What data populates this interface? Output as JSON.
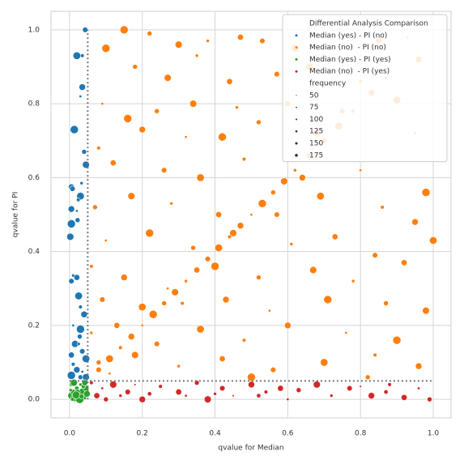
{
  "chart_data": {
    "type": "scatter",
    "xlabel": "qvalue for Median",
    "ylabel": "qvalue for PI",
    "xlim": [
      -0.051,
      1.049
    ],
    "ylim": [
      -0.05,
      1.05
    ],
    "xticks": [
      {
        "value": 0,
        "label": "0.0"
      },
      0.2,
      0.4,
      0.6,
      0.8,
      {
        "value": 1,
        "label": "1.0"
      }
    ],
    "yticks": [
      {
        "value": 0,
        "label": "0.0"
      },
      0.2,
      0.4,
      0.6,
      0.8,
      {
        "value": 1,
        "label": "1.0"
      }
    ],
    "grid": true,
    "threshold": 0.05,
    "legend": {
      "title": "Differential Analysis Comparison",
      "position": "upper right"
    },
    "size_legend": {
      "title": "frequency",
      "values": [
        50,
        75,
        100,
        125,
        150,
        175
      ]
    },
    "series": [
      {
        "name": "Median (yes) - PI (no)",
        "color": "#1f77b4",
        "x": [
          0.043,
          0.02,
          0.035,
          0.035,
          0.03,
          0.013,
          0.04,
          0.045,
          0.033,
          0.005,
          0.008,
          0.03,
          0.024,
          0.005,
          0.02,
          0.005,
          0.022,
          0.002,
          0.01,
          0.02,
          0.005,
          0.025,
          0.03,
          0.04,
          0.01,
          0.03,
          0.028,
          0.015,
          0.025,
          0.005,
          0.035,
          0.045,
          0.01,
          0.02,
          0.035,
          0.005,
          0.03,
          0.045
        ],
        "y": [
          1.0,
          0.93,
          0.93,
          0.845,
          0.82,
          0.73,
          0.67,
          0.635,
          0.585,
          0.575,
          0.57,
          0.55,
          0.54,
          0.515,
          0.51,
          0.475,
          0.485,
          0.44,
          0.335,
          0.33,
          0.32,
          0.28,
          0.25,
          0.23,
          0.2,
          0.19,
          0.17,
          0.15,
          0.15,
          0.12,
          0.13,
          0.11,
          0.095,
          0.08,
          0.075,
          0.065,
          0.06,
          0.06
        ],
        "sizes": [
          120,
          160,
          90,
          140,
          70,
          170,
          110,
          150,
          80,
          130,
          120,
          160,
          90,
          140,
          70,
          170,
          110,
          150,
          80,
          130,
          120,
          160,
          90,
          140,
          70,
          170,
          110,
          150,
          80,
          130,
          120,
          160,
          90,
          140,
          70,
          170,
          110,
          150
        ]
      },
      {
        "name": "Median (no)  - PI (no)",
        "color": "#ff7f0e",
        "x": [
          0.08,
          0.11,
          0.14,
          0.17,
          0.2,
          0.23,
          0.26,
          0.29,
          0.32,
          0.35,
          0.38,
          0.41,
          0.44,
          0.47,
          0.5,
          0.53,
          0.56,
          0.59,
          0.62,
          0.66,
          0.7,
          0.74,
          0.78,
          0.83,
          0.87,
          0.15,
          0.22,
          0.3,
          0.38,
          0.47,
          0.53,
          0.62,
          0.7,
          0.85,
          0.93,
          0.1,
          0.18,
          0.27,
          0.35,
          0.44,
          0.57,
          0.66,
          0.8,
          0.96,
          0.09,
          0.16,
          0.24,
          0.34,
          0.46,
          0.6,
          0.75,
          0.9,
          0.08,
          0.2,
          0.32,
          0.42,
          0.52,
          0.68,
          0.95,
          0.12,
          0.26,
          0.36,
          0.48,
          0.64,
          0.8,
          0.98,
          0.07,
          0.17,
          0.28,
          0.41,
          0.57,
          0.69,
          0.86,
          0.95,
          0.1,
          0.22,
          0.34,
          0.45,
          0.61,
          0.73,
          0.84,
          1.0,
          0.06,
          0.15,
          0.27,
          0.4,
          0.52,
          0.67,
          0.78,
          0.92,
          0.09,
          0.2,
          0.31,
          0.43,
          0.55,
          0.71,
          0.87,
          0.98,
          0.06,
          0.13,
          0.24,
          0.36,
          0.48,
          0.6,
          0.76,
          0.9,
          0.08,
          0.18,
          0.3,
          0.42,
          0.56,
          0.7,
          0.84,
          0.96,
          0.11,
          0.5,
          0.82
        ],
        "y": [
          0.08,
          0.11,
          0.14,
          0.17,
          0.2,
          0.23,
          0.26,
          0.29,
          0.32,
          0.35,
          0.38,
          0.41,
          0.44,
          0.47,
          0.5,
          0.53,
          0.56,
          0.59,
          0.62,
          0.66,
          0.7,
          0.74,
          0.78,
          0.83,
          0.87,
          1.0,
          0.99,
          0.96,
          0.97,
          0.98,
          0.97,
          0.95,
          0.93,
          0.97,
          0.98,
          0.95,
          0.9,
          0.87,
          0.93,
          0.86,
          0.88,
          0.9,
          0.86,
          0.92,
          0.8,
          0.76,
          0.78,
          0.8,
          0.79,
          0.8,
          0.78,
          0.81,
          0.68,
          0.73,
          0.71,
          0.71,
          0.75,
          0.72,
          0.72,
          0.64,
          0.62,
          0.6,
          0.65,
          0.6,
          0.62,
          0.56,
          0.52,
          0.55,
          0.53,
          0.5,
          0.5,
          0.55,
          0.52,
          0.48,
          0.43,
          0.45,
          0.41,
          0.45,
          0.42,
          0.44,
          0.39,
          0.43,
          0.36,
          0.33,
          0.3,
          0.36,
          0.33,
          0.35,
          0.32,
          0.37,
          0.27,
          0.25,
          0.26,
          0.27,
          0.24,
          0.27,
          0.26,
          0.24,
          0.18,
          0.2,
          0.15,
          0.19,
          0.16,
          0.2,
          0.18,
          0.16,
          0.1,
          0.12,
          0.09,
          0.11,
          0.08,
          0.1,
          0.12,
          0.09,
          0.07,
          0.06,
          0.06
        ],
        "sizes": [
          120,
          160,
          90,
          140,
          70,
          170,
          110,
          150,
          80,
          130,
          120,
          160,
          90,
          140,
          70,
          170,
          110,
          150,
          80,
          130,
          120,
          160,
          90,
          140,
          70,
          170,
          110,
          150,
          80,
          130,
          120,
          160,
          90,
          140,
          70,
          170,
          110,
          150,
          80,
          130,
          120,
          160,
          90,
          140,
          70,
          170,
          110,
          150,
          80,
          130,
          120,
          160,
          90,
          140,
          70,
          170,
          110,
          150,
          80,
          130,
          120,
          160,
          90,
          140,
          70,
          170,
          110,
          150,
          80,
          130,
          120,
          160,
          90,
          140,
          70,
          170,
          110,
          150,
          80,
          130,
          120,
          160,
          90,
          140,
          70,
          170,
          110,
          150,
          80,
          130,
          120,
          160,
          90,
          140,
          70,
          170,
          110,
          150,
          80,
          130,
          120,
          160,
          90,
          140,
          70,
          170,
          110,
          150,
          80,
          130,
          120,
          160,
          90,
          140,
          70,
          170,
          110
        ]
      },
      {
        "name": "Median (yes) - PI (yes)",
        "color": "#2ca02c",
        "x": [
          0.005,
          0.01,
          0.015,
          0.02,
          0.025,
          0.03,
          0.035,
          0.04,
          0.045,
          0.005,
          0.012,
          0.022,
          0.028,
          0.038,
          0.048,
          0.003,
          0.018,
          0.033,
          0.042,
          0.008
        ],
        "y": [
          0.01,
          0.02,
          0.005,
          0.03,
          0.01,
          0.04,
          0.02,
          0.005,
          0.03,
          0.04,
          0.045,
          0.02,
          0.0,
          0.035,
          0.015,
          0.025,
          0.012,
          0.008,
          0.045,
          0.0
        ],
        "sizes": [
          150,
          120,
          170,
          100,
          140,
          80,
          160,
          110,
          130,
          90,
          150,
          120,
          170,
          100,
          140,
          80,
          160,
          110,
          130,
          90
        ]
      },
      {
        "name": "Median (no)  - PI (yes)",
        "color": "#d62728",
        "x": [
          0.06,
          0.075,
          0.09,
          0.1,
          0.12,
          0.14,
          0.16,
          0.18,
          0.2,
          0.22,
          0.25,
          0.3,
          0.32,
          0.35,
          0.38,
          0.4,
          0.42,
          0.45,
          0.5,
          0.52,
          0.54,
          0.58,
          0.6,
          0.63,
          0.68,
          0.72,
          0.77,
          0.8,
          0.83,
          0.87,
          0.88,
          0.92,
          0.96,
          0.99
        ],
        "y": [
          0.045,
          0.01,
          0.03,
          0.0,
          0.04,
          0.01,
          0.02,
          0.04,
          0.0,
          0.015,
          0.035,
          0.02,
          0.01,
          0.045,
          0.0,
          0.015,
          0.03,
          0.01,
          0.04,
          0.01,
          0.02,
          0.03,
          0.0,
          0.025,
          0.04,
          0.01,
          0.03,
          0.035,
          0.01,
          0.02,
          0.04,
          0.005,
          0.03,
          0.0
        ],
        "sizes": [
          90,
          130,
          70,
          110,
          150,
          80,
          120,
          60,
          140,
          100,
          90,
          130,
          70,
          110,
          150,
          80,
          120,
          60,
          140,
          100,
          90,
          130,
          70,
          110,
          150,
          80,
          120,
          60,
          140,
          100,
          90,
          130,
          70,
          110
        ]
      }
    ]
  }
}
